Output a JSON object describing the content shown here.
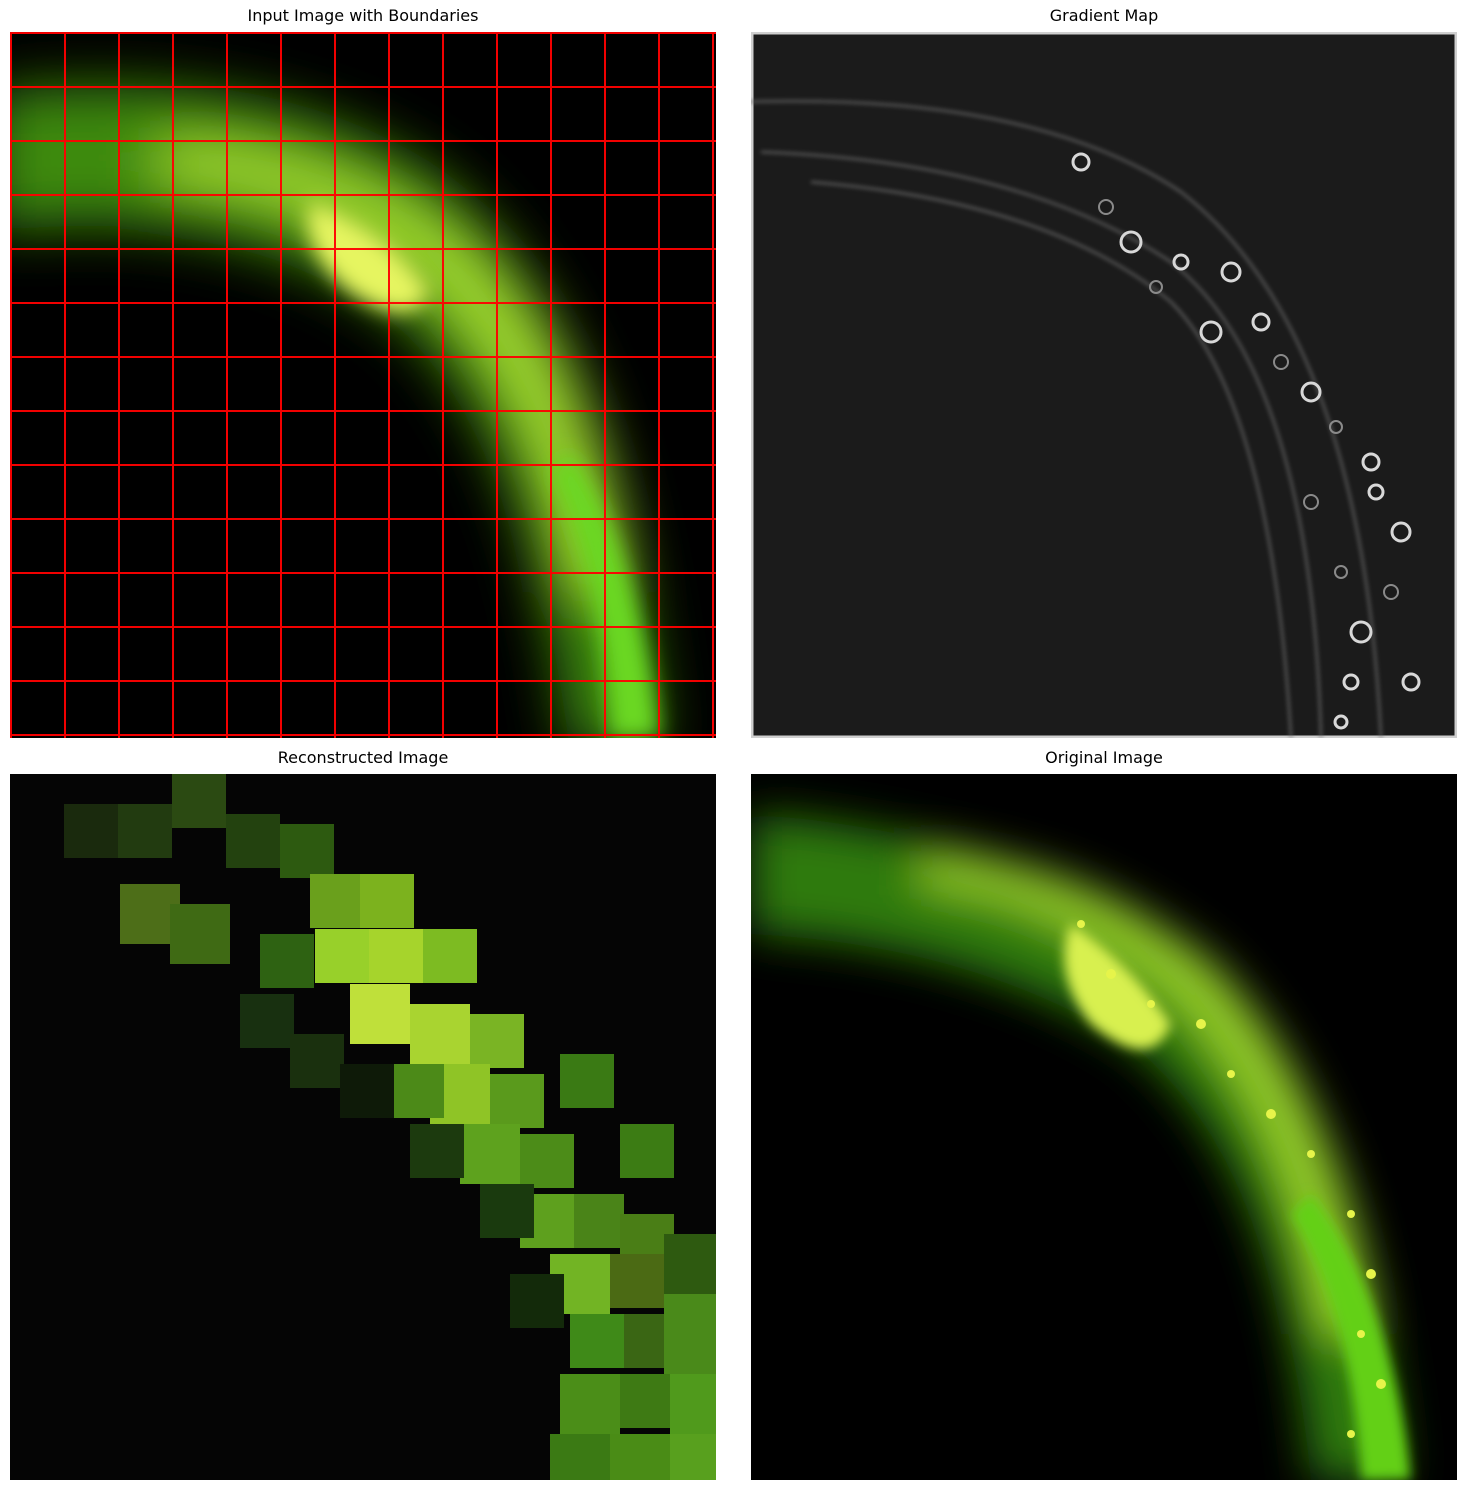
{
  "panels": [
    {
      "title": "Input Image with Boundaries"
    },
    {
      "title": "Gradient Map"
    },
    {
      "title": "Reconstructed Image"
    },
    {
      "title": "Original Image"
    }
  ],
  "colors": {
    "boundary": "#ff0000",
    "fluorescence_green": "#5fd010",
    "fluorescence_yellow": "#e0f040",
    "gradient_background": "#1b1b1b",
    "background": "#000000"
  }
}
